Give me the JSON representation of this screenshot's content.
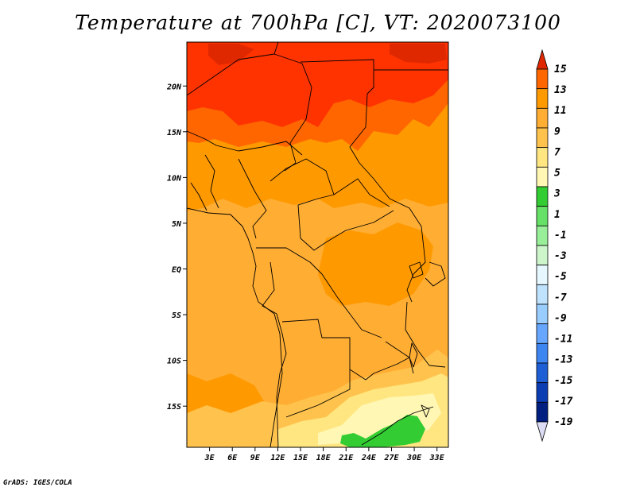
{
  "title": "Temperature at 700hPa [C], VT: 2020073100",
  "credit": "GrADS: IGES/COLA",
  "map": {
    "lon_range": [
      0,
      34.5
    ],
    "lat_range": [
      -19.5,
      24.8
    ],
    "lon_ticks": [
      {
        "value": 3,
        "label": "3E"
      },
      {
        "value": 6,
        "label": "6E"
      },
      {
        "value": 9,
        "label": "9E"
      },
      {
        "value": 12,
        "label": "12E"
      },
      {
        "value": 15,
        "label": "15E"
      },
      {
        "value": 18,
        "label": "18E"
      },
      {
        "value": 21,
        "label": "21E"
      },
      {
        "value": 24,
        "label": "24E"
      },
      {
        "value": 27,
        "label": "27E"
      },
      {
        "value": 30,
        "label": "30E"
      },
      {
        "value": 33,
        "label": "33E"
      }
    ],
    "lat_ticks": [
      {
        "value": 20,
        "label": "20N"
      },
      {
        "value": 15,
        "label": "15N"
      },
      {
        "value": 10,
        "label": "10N"
      },
      {
        "value": 5,
        "label": "5N"
      },
      {
        "value": 0,
        "label": "EQ"
      },
      {
        "value": -5,
        "label": "5S"
      },
      {
        "value": -10,
        "label": "10S"
      },
      {
        "value": -15,
        "label": "15S"
      }
    ]
  },
  "colorbar": {
    "levels": [
      "15",
      "13",
      "11",
      "9",
      "7",
      "5",
      "3",
      "1",
      "-1",
      "-3",
      "-5",
      "-7",
      "-9",
      "-11",
      "-13",
      "-15",
      "-17",
      "-19"
    ],
    "colors": [
      "#ff3300",
      "#ff6600",
      "#ff9900",
      "#ffad33",
      "#ffc34d",
      "#ffe680",
      "#fff7b3",
      "#33cc33",
      "#66e066",
      "#99ee99",
      "#ccf5cc",
      "#e6f7ff",
      "#bfe3ff",
      "#99ccff",
      "#66a6ff",
      "#3d85f0",
      "#1f5fd6",
      "#0d3db3",
      "#001f80",
      "#000066"
    ],
    "top_color": "#e02800",
    "bottom_color": "#dcdcf4"
  },
  "field_colors": {
    "t13": "#ff3300",
    "t11": "#ff6600",
    "t9": "#ff9900",
    "t7": "#ffad33",
    "t5": "#ffc34d",
    "t3": "#ffe680",
    "t1": "#fff7b3",
    "tm1": "#33cc33",
    "t15": "#e02800"
  }
}
